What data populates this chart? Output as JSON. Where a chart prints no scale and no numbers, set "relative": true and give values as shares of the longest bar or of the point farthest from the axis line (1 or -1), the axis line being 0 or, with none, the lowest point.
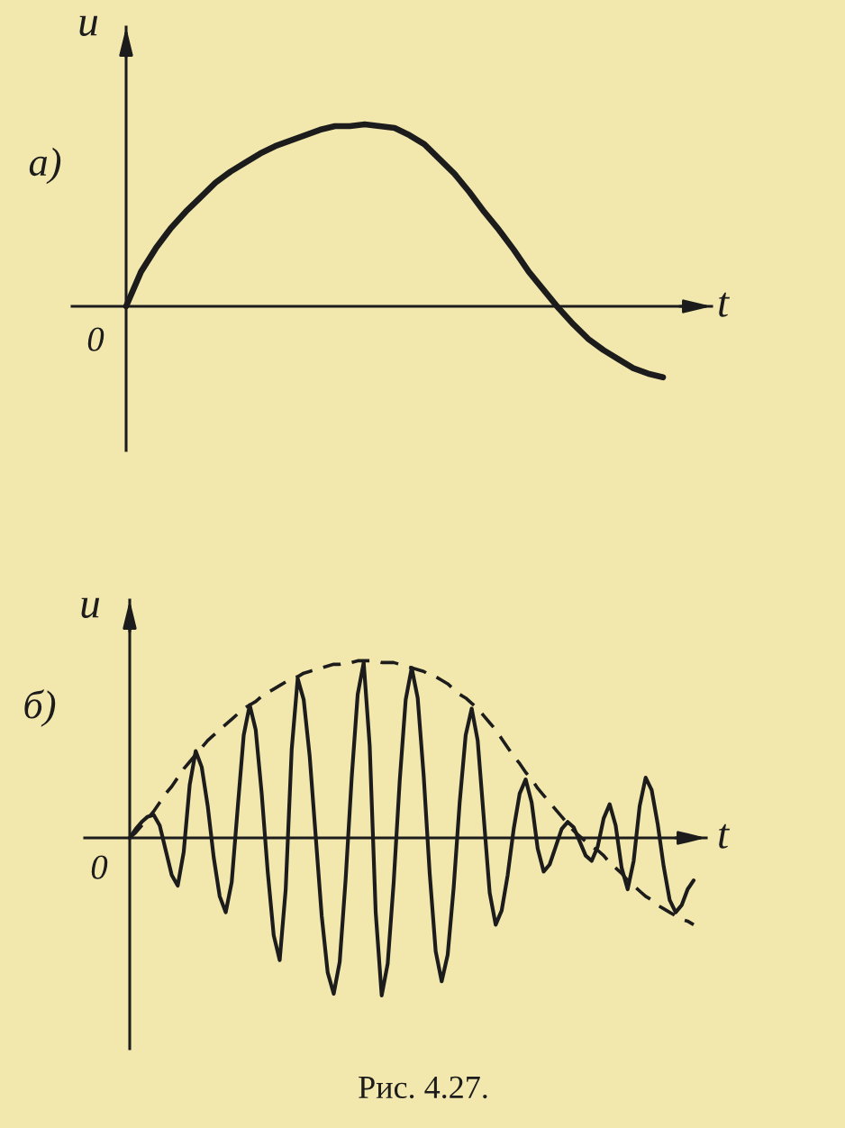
{
  "chart_data": [
    {
      "type": "line",
      "title": "а)",
      "xlabel": "t",
      "ylabel": "u",
      "relative": true,
      "categories": [
        null,
        null,
        null,
        null,
        null,
        null,
        null,
        null,
        null,
        null,
        null,
        null,
        null,
        null,
        null,
        null,
        null,
        null,
        null,
        null,
        null,
        null,
        null,
        null,
        null,
        null,
        null,
        null,
        null,
        null,
        null,
        null,
        null,
        null,
        null,
        null,
        null
      ],
      "series": [
        {
          "color": "#1c1c1c",
          "line_style": "solid",
          "values": [
            0,
            0.19,
            0.32,
            0.43,
            0.52,
            0.6,
            0.68,
            0.74,
            0.79,
            0.84,
            0.88,
            0.91,
            0.94,
            0.97,
            0.99,
            0.99,
            1.0,
            0.99,
            0.98,
            0.94,
            0.89,
            0.81,
            0.73,
            0.63,
            0.52,
            0.42,
            0.31,
            0.19,
            0.09,
            -0.01,
            -0.1,
            -0.18,
            -0.24,
            -0.29,
            -0.34,
            -0.37,
            -0.39
          ]
        }
      ],
      "annotations": [
        "0"
      ]
    },
    {
      "type": "line",
      "title": "б)",
      "xlabel": "t",
      "ylabel": "u",
      "relative": true,
      "categories": [
        null,
        null,
        null,
        null,
        null,
        null,
        null,
        null,
        null,
        null,
        null,
        null,
        null,
        null,
        null,
        null,
        null,
        null,
        null,
        null,
        null,
        null,
        null,
        null,
        null,
        null,
        null,
        null,
        null,
        null,
        null,
        null,
        null,
        null,
        null,
        null,
        null,
        null,
        null,
        null,
        null,
        null,
        null,
        null,
        null,
        null,
        null,
        null,
        null,
        null,
        null,
        null,
        null,
        null,
        null,
        null,
        null,
        null,
        null,
        null,
        null,
        null,
        null,
        null,
        null,
        null,
        null,
        null,
        null,
        null,
        null,
        null,
        null,
        null,
        null,
        null,
        null,
        null,
        null,
        null,
        null,
        null,
        null,
        null,
        null,
        null,
        null,
        null,
        null,
        null,
        null,
        null,
        null,
        null,
        null
      ],
      "series": [
        {
          "color": "#1c1c1c",
          "line_style": "solid",
          "values": [
            0,
            0.05,
            0.09,
            0.12,
            0.13,
            0.07,
            -0.07,
            -0.21,
            -0.27,
            -0.08,
            0.3,
            0.49,
            0.4,
            0.18,
            -0.11,
            -0.33,
            -0.42,
            -0.25,
            0.17,
            0.58,
            0.75,
            0.61,
            0.25,
            -0.19,
            -0.55,
            -0.69,
            -0.29,
            0.5,
            0.9,
            0.78,
            0.46,
            0.01,
            -0.44,
            -0.76,
            -0.88,
            -0.7,
            -0.23,
            0.34,
            0.81,
            0.99,
            0.52,
            -0.42,
            -0.89,
            -0.71,
            -0.25,
            0.32,
            0.78,
            0.96,
            0.79,
            0.35,
            -0.2,
            -0.64,
            -0.81,
            -0.66,
            -0.28,
            0.2,
            0.58,
            0.73,
            0.55,
            0.12,
            -0.31,
            -0.49,
            -0.41,
            -0.21,
            0.05,
            0.25,
            0.33,
            0.2,
            -0.06,
            -0.19,
            -0.15,
            -0.05,
            0.05,
            0.09,
            0.06,
            -0.02,
            -0.1,
            -0.13,
            -0.05,
            0.11,
            0.19,
            0.07,
            -0.17,
            -0.29,
            -0.13,
            0.18,
            0.34,
            0.27,
            0.08,
            -0.16,
            -0.35,
            -0.42,
            -0.38,
            -0.29,
            -0.24
          ]
        },
        {
          "color": "#1c1c1c",
          "line_style": "dashed",
          "values": [
            0,
            0.03,
            0.07,
            0.11,
            0.15,
            0.2,
            0.25,
            0.29,
            0.34,
            0.39,
            0.43,
            0.47,
            0.51,
            0.55,
            0.58,
            0.61,
            0.64,
            0.67,
            0.7,
            0.73,
            0.75,
            0.77,
            0.8,
            0.82,
            0.84,
            0.86,
            0.88,
            0.9,
            0.91,
            0.93,
            0.94,
            0.95,
            0.96,
            0.97,
            0.98,
            0.98,
            0.99,
            0.99,
            1.0,
            1.0,
            1.0,
            1.0,
            0.99,
            0.99,
            0.99,
            0.98,
            0.97,
            0.96,
            0.95,
            0.94,
            0.92,
            0.91,
            0.89,
            0.87,
            0.84,
            0.81,
            0.79,
            0.76,
            0.73,
            0.69,
            0.65,
            0.61,
            0.56,
            0.51,
            0.46,
            0.42,
            0.37,
            0.33,
            0.28,
            0.24,
            0.2,
            0.16,
            0.12,
            0.08,
            0.04,
            0.01,
            -0.02,
            -0.05,
            -0.07,
            -0.1,
            -0.14,
            -0.17,
            -0.2,
            -0.24,
            -0.27,
            -0.3,
            -0.33,
            -0.35,
            -0.38,
            -0.4,
            -0.42,
            -0.44,
            -0.46,
            -0.47,
            -0.49
          ]
        }
      ],
      "annotations": [
        "0",
        "Рис. 4.27."
      ]
    }
  ]
}
